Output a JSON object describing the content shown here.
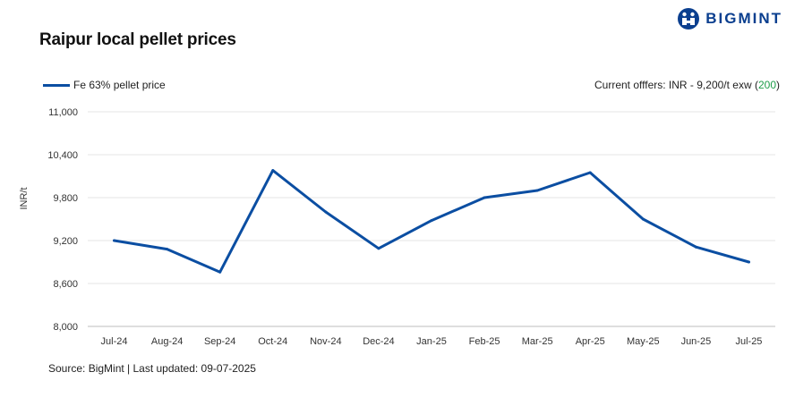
{
  "title": "Raipur local pellet prices",
  "logo": {
    "text": "BIGMINT",
    "icon": "bigmint-logo-icon"
  },
  "legend": {
    "series_name": "Fe 63% pellet price"
  },
  "offers": {
    "prefix": "Current offfers: INR - 9,200/t exw (",
    "change": "200",
    "suffix": ")"
  },
  "source": "Source: BigMint | Last updated: 09-07-2025",
  "colors": {
    "series": "#0b4ea2",
    "grid": "#e6e6e6",
    "brand": "#0b3f8f",
    "positive": "#1e9e4a"
  },
  "chart_data": {
    "type": "line",
    "title": "Raipur local pellet prices",
    "xlabel": "",
    "ylabel": "INR/t",
    "categories": [
      "Jul-24",
      "Aug-24",
      "Sep-24",
      "Oct-24",
      "Nov-24",
      "Dec-24",
      "Jan-25",
      "Feb-25",
      "Mar-25",
      "Apr-25",
      "May-25",
      "Jun-25",
      "Jul-25"
    ],
    "series": [
      {
        "name": "Fe 63% pellet price",
        "values": [
          9200,
          9080,
          8760,
          10180,
          9600,
          9090,
          9480,
          9800,
          9900,
          10150,
          9500,
          9110,
          8900
        ]
      }
    ],
    "ylim": [
      8000,
      11000
    ],
    "yticks": [
      8000,
      8600,
      9200,
      9800,
      10400,
      11000
    ],
    "ytick_labels": [
      "8,000",
      "8,600",
      "9,200",
      "9,800",
      "10,400",
      "11,000"
    ],
    "grid": true,
    "legend_position": "top-left"
  }
}
